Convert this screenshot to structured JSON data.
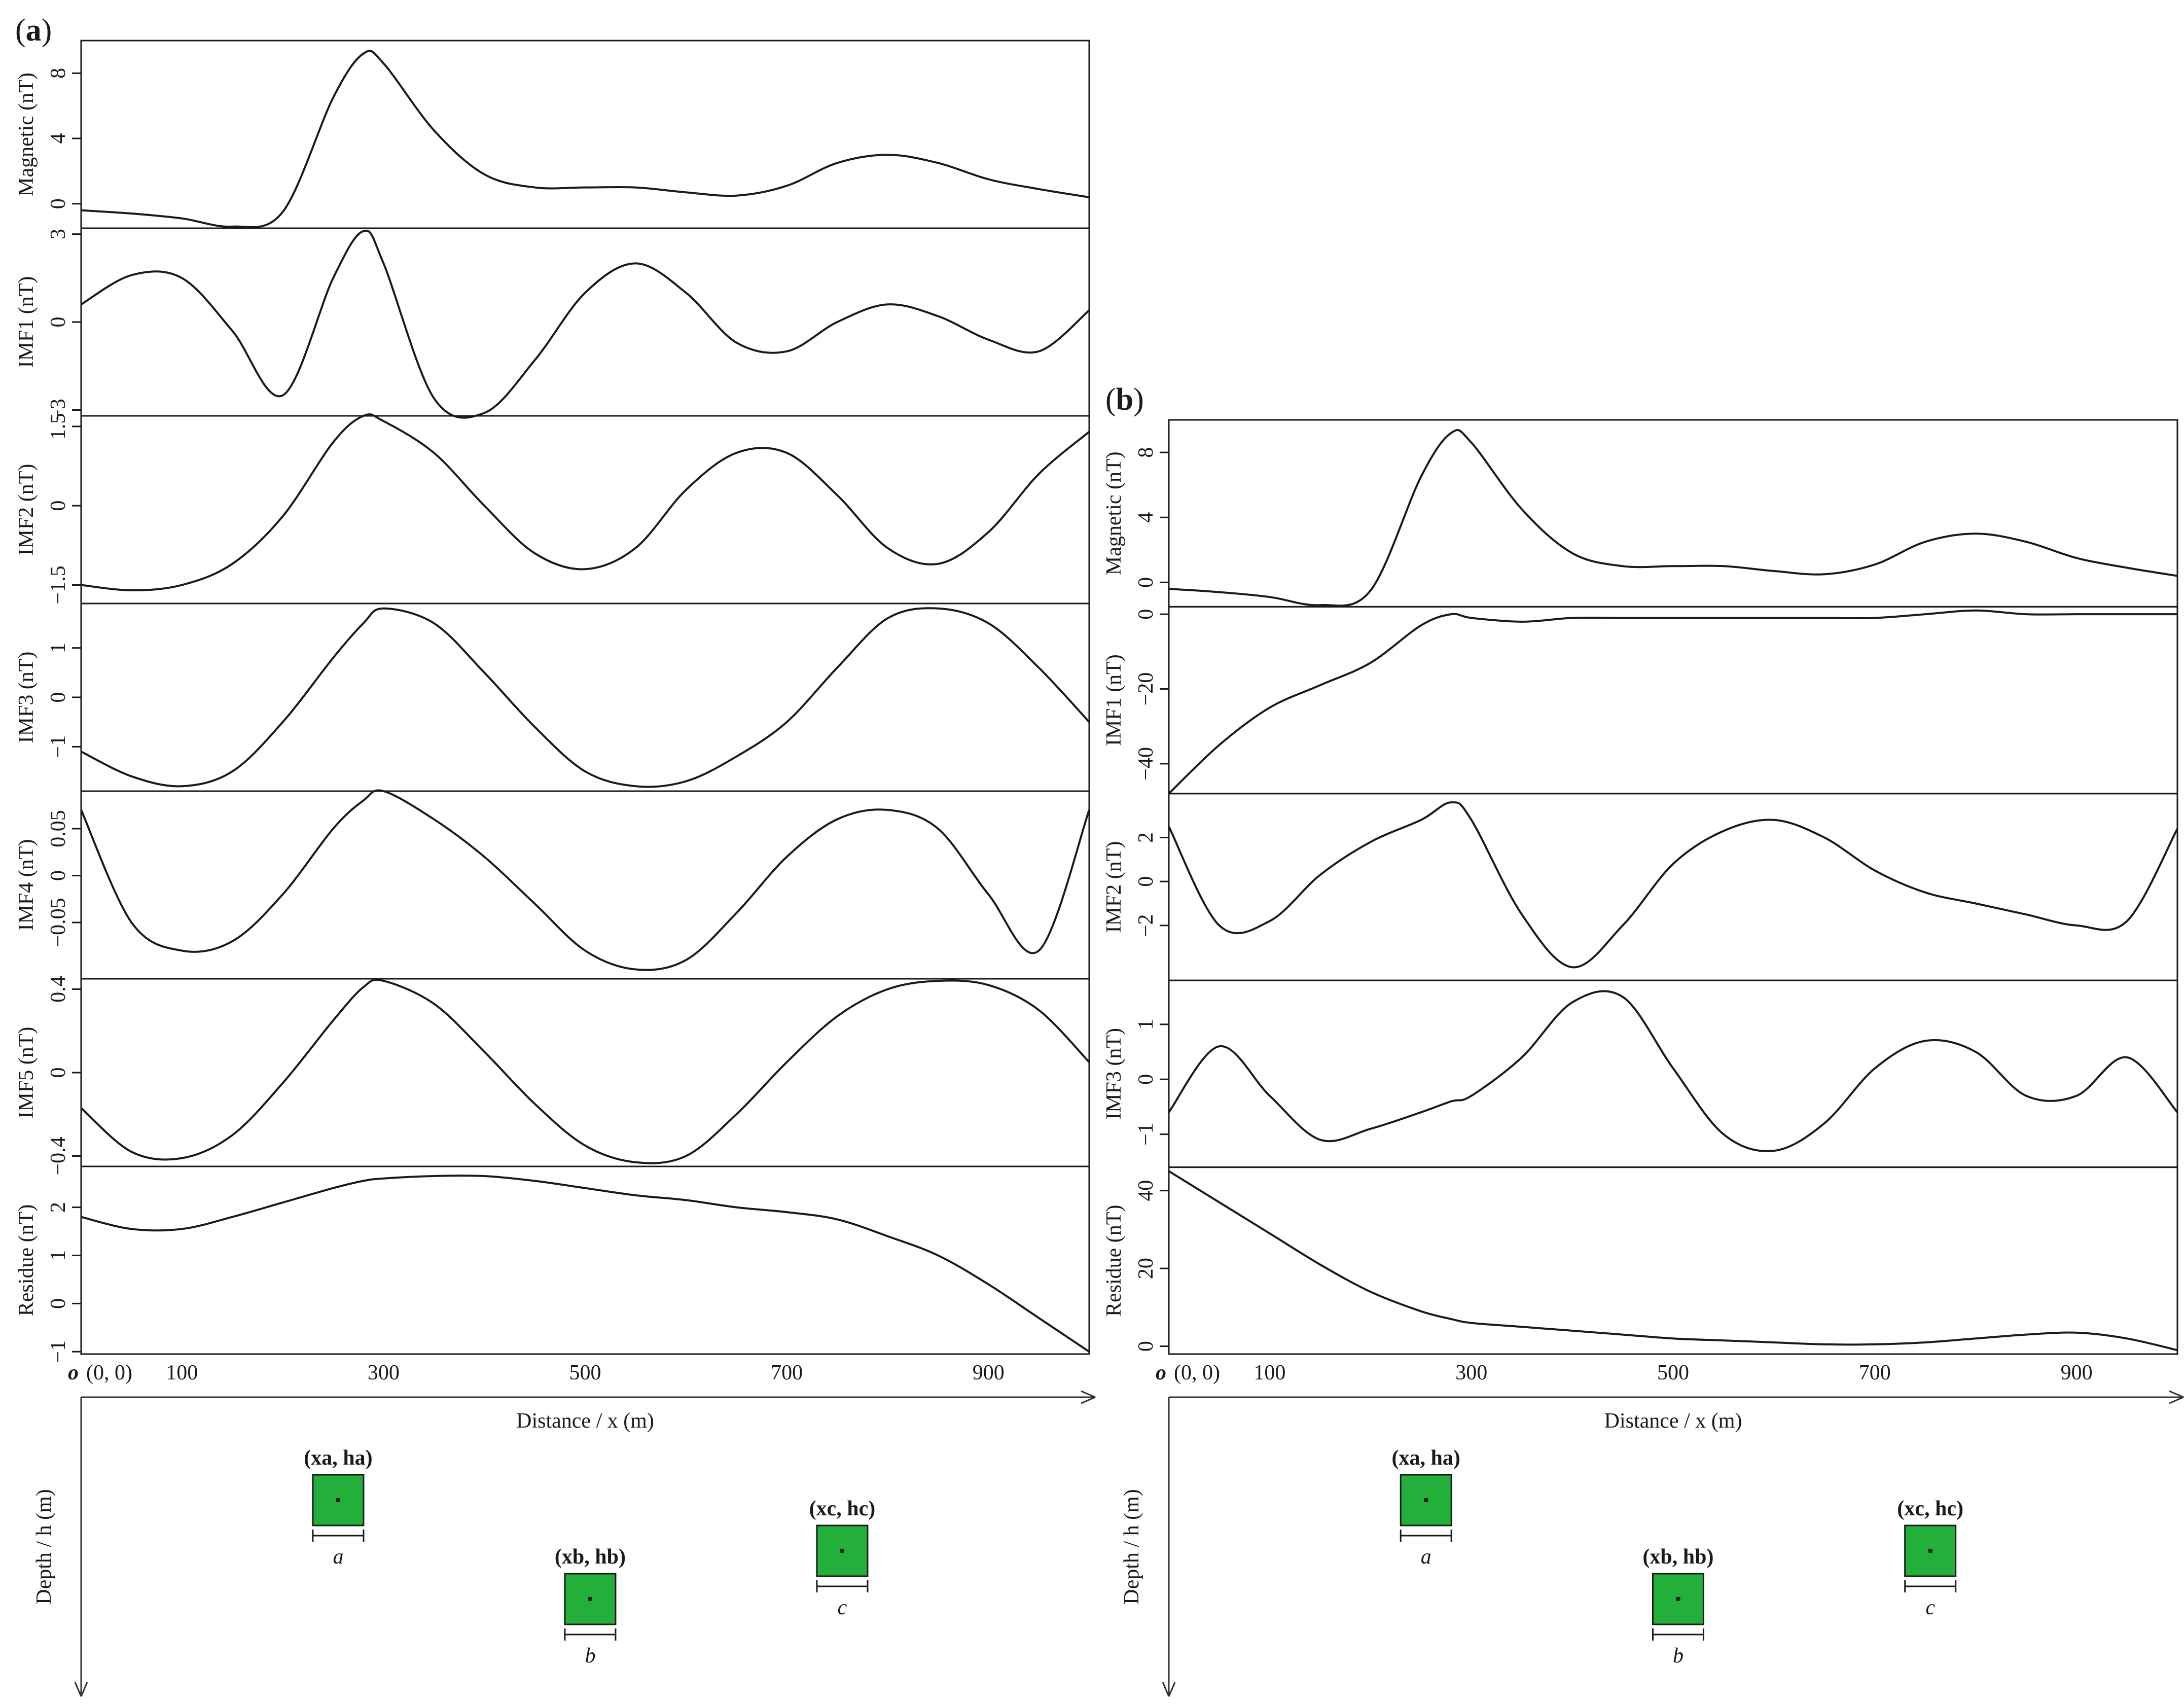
{
  "chart_data": [
    {
      "type": "line",
      "panel_label": "a",
      "x": [
        0,
        50,
        100,
        150,
        200,
        250,
        280,
        300,
        350,
        400,
        450,
        500,
        550,
        600,
        650,
        700,
        750,
        800,
        850,
        900,
        950,
        1000
      ],
      "x_ticks": [
        "100",
        "300",
        "500",
        "700",
        "900"
      ],
      "x_tick_values": [
        100,
        300,
        500,
        700,
        900
      ],
      "xlim": [
        0,
        1000
      ],
      "xlabel": "Distance / x (m)",
      "origin_label": "o",
      "origin_coord": "(0, 0)",
      "ylabel_depth": "Depth / h (m)",
      "subplots": [
        {
          "ylabel": "Magnetic (nT)",
          "ylim": [
            -1.5,
            10
          ],
          "y_ticks": [
            "0",
            "4",
            "8"
          ],
          "y_tick_values": [
            0,
            4,
            8
          ],
          "values": [
            -0.4,
            -0.6,
            -0.9,
            -1.4,
            -0.5,
            6.5,
            9.2,
            8.6,
            4.5,
            1.8,
            1.0,
            1.0,
            1.0,
            0.7,
            0.5,
            1.1,
            2.5,
            3.0,
            2.5,
            1.5,
            0.9,
            0.4
          ]
        },
        {
          "ylabel": "IMF1 (nT)",
          "ylim": [
            -3.2,
            3.2
          ],
          "y_ticks": [
            "-3",
            "0",
            "3"
          ],
          "y_tick_values": [
            -3,
            0,
            3
          ],
          "values": [
            0.6,
            1.6,
            1.5,
            -0.3,
            -2.5,
            1.5,
            3.1,
            2.0,
            -2.6,
            -3.1,
            -1.3,
            1.0,
            2.0,
            1.0,
            -0.7,
            -1.0,
            0.0,
            0.6,
            0.2,
            -0.6,
            -1.0,
            0.4
          ]
        },
        {
          "ylabel": "IMF2 (nT)",
          "ylim": [
            -1.85,
            1.7
          ],
          "y_ticks": [
            "-1.5",
            "0",
            "1.5"
          ],
          "y_tick_values": [
            -1.5,
            0,
            1.5
          ],
          "values": [
            -1.5,
            -1.6,
            -1.5,
            -1.1,
            -0.2,
            1.2,
            1.7,
            1.6,
            1.0,
            0.0,
            -0.9,
            -1.2,
            -0.8,
            0.3,
            1.0,
            1.0,
            0.2,
            -0.8,
            -1.1,
            -0.5,
            0.6,
            1.4
          ]
        },
        {
          "ylabel": "IMF3 (nT)",
          "ylim": [
            -1.9,
            1.9
          ],
          "y_ticks": [
            "-1",
            "0",
            "1"
          ],
          "y_tick_values": [
            -1,
            0,
            1
          ],
          "values": [
            -1.1,
            -1.6,
            -1.8,
            -1.5,
            -0.5,
            0.8,
            1.5,
            1.8,
            1.5,
            0.5,
            -0.6,
            -1.5,
            -1.8,
            -1.7,
            -1.2,
            -0.5,
            0.6,
            1.6,
            1.8,
            1.5,
            0.6,
            -0.5
          ]
        },
        {
          "ylabel": "IMF4 (nT)",
          "ylim": [
            -0.11,
            0.09
          ],
          "y_ticks": [
            "-0.05",
            "0",
            "0.05"
          ],
          "y_tick_values": [
            -0.05,
            0,
            0.05
          ],
          "values": [
            0.07,
            -0.05,
            -0.08,
            -0.07,
            -0.02,
            0.05,
            0.08,
            0.09,
            0.06,
            0.02,
            -0.03,
            -0.08,
            -0.1,
            -0.09,
            -0.04,
            0.02,
            0.06,
            0.07,
            0.05,
            -0.02,
            -0.08,
            0.07
          ]
        },
        {
          "ylabel": "IMF5 (nT)",
          "ylim": [
            -0.45,
            0.45
          ],
          "y_ticks": [
            "-0.4",
            "0",
            "0.4"
          ],
          "y_tick_values": [
            -0.4,
            0,
            0.4
          ],
          "values": [
            -0.17,
            -0.38,
            -0.41,
            -0.3,
            -0.05,
            0.25,
            0.41,
            0.44,
            0.33,
            0.1,
            -0.15,
            -0.35,
            -0.43,
            -0.4,
            -0.2,
            0.05,
            0.27,
            0.4,
            0.44,
            0.42,
            0.3,
            0.05
          ]
        },
        {
          "ylabel": "Residue (nT)",
          "ylim": [
            -1.05,
            2.85
          ],
          "y_ticks": [
            "-1",
            "0",
            "1",
            "2"
          ],
          "y_tick_values": [
            -1,
            0,
            1,
            2
          ],
          "values": [
            1.8,
            1.55,
            1.55,
            1.8,
            2.1,
            2.4,
            2.55,
            2.6,
            2.65,
            2.65,
            2.55,
            2.4,
            2.25,
            2.15,
            2.0,
            1.9,
            1.75,
            1.4,
            1.0,
            0.4,
            -0.3,
            -1.0
          ]
        }
      ],
      "sources": [
        {
          "label": "a",
          "coord": "(xa, ha)",
          "x": 255,
          "depth": 1
        },
        {
          "label": "b",
          "coord": "(xb, hb)",
          "x": 505,
          "depth": 3
        },
        {
          "label": "c",
          "coord": "(xc, hc)",
          "x": 755,
          "depth": 2
        }
      ]
    },
    {
      "type": "line",
      "panel_label": "b",
      "x": [
        0,
        50,
        100,
        150,
        200,
        250,
        280,
        300,
        350,
        400,
        450,
        500,
        550,
        600,
        650,
        700,
        750,
        800,
        850,
        900,
        950,
        1000
      ],
      "x_ticks": [
        "100",
        "300",
        "500",
        "700",
        "900"
      ],
      "x_tick_values": [
        100,
        300,
        500,
        700,
        900
      ],
      "xlim": [
        0,
        1000
      ],
      "xlabel": "Distance / x (m)",
      "origin_label": "o",
      "origin_coord": "(0, 0)",
      "ylabel_depth": "Depth / h (m)",
      "subplots": [
        {
          "ylabel": "Magnetic (nT)",
          "ylim": [
            -1.5,
            10
          ],
          "y_ticks": [
            "0",
            "4",
            "8"
          ],
          "y_tick_values": [
            0,
            4,
            8
          ],
          "values": [
            -0.4,
            -0.6,
            -0.9,
            -1.4,
            -0.5,
            6.5,
            9.2,
            8.6,
            4.5,
            1.8,
            1.0,
            1.0,
            1.0,
            0.7,
            0.5,
            1.1,
            2.5,
            3.0,
            2.5,
            1.5,
            0.9,
            0.4
          ]
        },
        {
          "ylabel": "IMF1 (nT)",
          "ylim": [
            -48,
            2
          ],
          "y_ticks": [
            "-40",
            "-20",
            "0"
          ],
          "y_tick_values": [
            -40,
            -20,
            0
          ],
          "values": [
            -48,
            -35,
            -25,
            -19,
            -13,
            -3,
            0,
            -1,
            -2,
            -1,
            -1,
            -1,
            -1,
            -1,
            -1,
            -1,
            0,
            1,
            0,
            0,
            0,
            0
          ]
        },
        {
          "ylabel": "IMF2 (nT)",
          "ylim": [
            -4.5,
            4
          ],
          "y_ticks": [
            "-2",
            "0",
            "2"
          ],
          "y_tick_values": [
            -2,
            0,
            2
          ],
          "values": [
            2.5,
            -2.0,
            -1.8,
            0.3,
            1.8,
            2.8,
            3.6,
            2.8,
            -1.5,
            -3.9,
            -2.0,
            0.8,
            2.3,
            2.8,
            2.0,
            0.5,
            -0.5,
            -1.0,
            -1.5,
            -2.0,
            -1.8,
            2.4
          ]
        },
        {
          "ylabel": "IMF3 (nT)",
          "ylim": [
            -1.6,
            1.8
          ],
          "y_ticks": [
            "-1",
            "0",
            "1"
          ],
          "y_tick_values": [
            -1,
            0,
            1
          ],
          "values": [
            -0.6,
            0.6,
            -0.3,
            -1.1,
            -0.9,
            -0.6,
            -0.4,
            -0.3,
            0.4,
            1.4,
            1.5,
            0.2,
            -1.0,
            -1.3,
            -0.8,
            0.2,
            0.7,
            0.5,
            -0.3,
            -0.3,
            0.4,
            -0.6
          ]
        },
        {
          "ylabel": "Residue (nT)",
          "ylim": [
            -2,
            46
          ],
          "y_ticks": [
            "0",
            "20",
            "40"
          ],
          "y_tick_values": [
            0,
            20,
            40
          ],
          "values": [
            45,
            37,
            29,
            21,
            14,
            9,
            7,
            6,
            5,
            4,
            3,
            2,
            1.5,
            1,
            0.5,
            0.5,
            1,
            2,
            3,
            3.5,
            2,
            -1
          ]
        }
      ],
      "sources": [
        {
          "label": "a",
          "coord": "(xa, ha)",
          "x": 255,
          "depth": 1
        },
        {
          "label": "b",
          "coord": "(xb, hb)",
          "x": 505,
          "depth": 3
        },
        {
          "label": "c",
          "coord": "(xc, hc)",
          "x": 755,
          "depth": 2
        }
      ]
    }
  ]
}
